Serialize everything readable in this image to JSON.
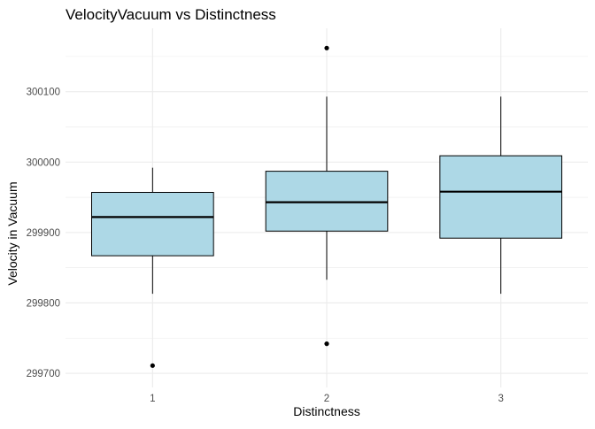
{
  "chart_data": {
    "type": "box",
    "title": "VelocityVacuum vs Distinctness",
    "xlabel": "Distinctness",
    "ylabel": "Velocity in Vacuum",
    "categories": [
      "1",
      "2",
      "3"
    ],
    "ylim": [
      299680,
      300190
    ],
    "y_ticks": [
      299700,
      299800,
      299900,
      300000,
      300100
    ],
    "y_tick_labels": [
      "299700",
      "299800",
      "299900",
      "300000",
      "300100"
    ],
    "grid": true,
    "box_fill": "#add8e6",
    "box_stroke": "#000000",
    "gridline_color": "#ebebeb",
    "boxes": [
      {
        "category": "1",
        "lower_whisker": 299813,
        "q1": 299867,
        "median": 299922,
        "q3": 299957,
        "upper_whisker": 299992,
        "outliers": [
          299711
        ]
      },
      {
        "category": "2",
        "lower_whisker": 299833,
        "q1": 299902,
        "median": 299943,
        "q3": 299987,
        "upper_whisker": 300093,
        "outliers": [
          299742,
          300162
        ]
      },
      {
        "category": "3",
        "lower_whisker": 299813,
        "q1": 299892,
        "median": 299958,
        "q3": 300009,
        "upper_whisker": 300093,
        "outliers": []
      }
    ]
  }
}
